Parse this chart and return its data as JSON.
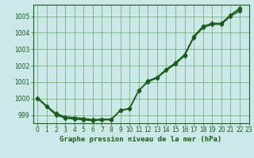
{
  "title": "Graphe pression niveau de la mer (hPa)",
  "bg_color": "#cce8e8",
  "plot_bg_color": "#cce8e8",
  "grid_color": "#66aa66",
  "line_color": "#1a5c1a",
  "xlim": [
    -0.5,
    23
  ],
  "ylim": [
    998.5,
    1005.7
  ],
  "xticks": [
    0,
    1,
    2,
    3,
    4,
    5,
    6,
    7,
    8,
    9,
    10,
    11,
    12,
    13,
    14,
    15,
    16,
    17,
    18,
    19,
    20,
    21,
    22,
    23
  ],
  "yticks": [
    999,
    1000,
    1001,
    1002,
    1003,
    1004,
    1005
  ],
  "x": [
    0,
    1,
    2,
    3,
    4,
    5,
    6,
    7,
    8,
    9,
    10,
    11,
    12,
    13,
    14,
    15,
    16,
    17,
    18,
    19,
    20,
    21,
    22
  ],
  "series1": [
    1000.0,
    999.5,
    999.0,
    998.8,
    998.75,
    998.7,
    998.65,
    998.7,
    998.7,
    999.3,
    999.4,
    1000.5,
    1001.0,
    1001.25,
    1001.7,
    1002.1,
    1002.6,
    1003.7,
    1004.3,
    1004.5,
    1004.5,
    1005.0,
    1005.3
  ],
  "series2": [
    1000.0,
    999.5,
    999.05,
    998.85,
    998.8,
    998.75,
    998.7,
    998.72,
    998.72,
    999.25,
    999.38,
    1000.45,
    1001.05,
    1001.28,
    1001.75,
    1002.15,
    1002.65,
    1003.75,
    1004.38,
    1004.55,
    1004.55,
    1005.05,
    1005.42
  ],
  "series3": [
    1000.05,
    999.55,
    999.1,
    998.9,
    998.85,
    998.8,
    998.72,
    998.75,
    998.75,
    999.28,
    999.4,
    1000.48,
    1001.08,
    1001.3,
    1001.78,
    1002.18,
    1002.68,
    1003.78,
    1004.4,
    1004.58,
    1004.58,
    1005.08,
    1005.5
  ],
  "marker": "D",
  "markersize": 2.5,
  "linewidth": 0.9,
  "tick_fontsize": 5.5,
  "xlabel_fontsize": 6.5
}
